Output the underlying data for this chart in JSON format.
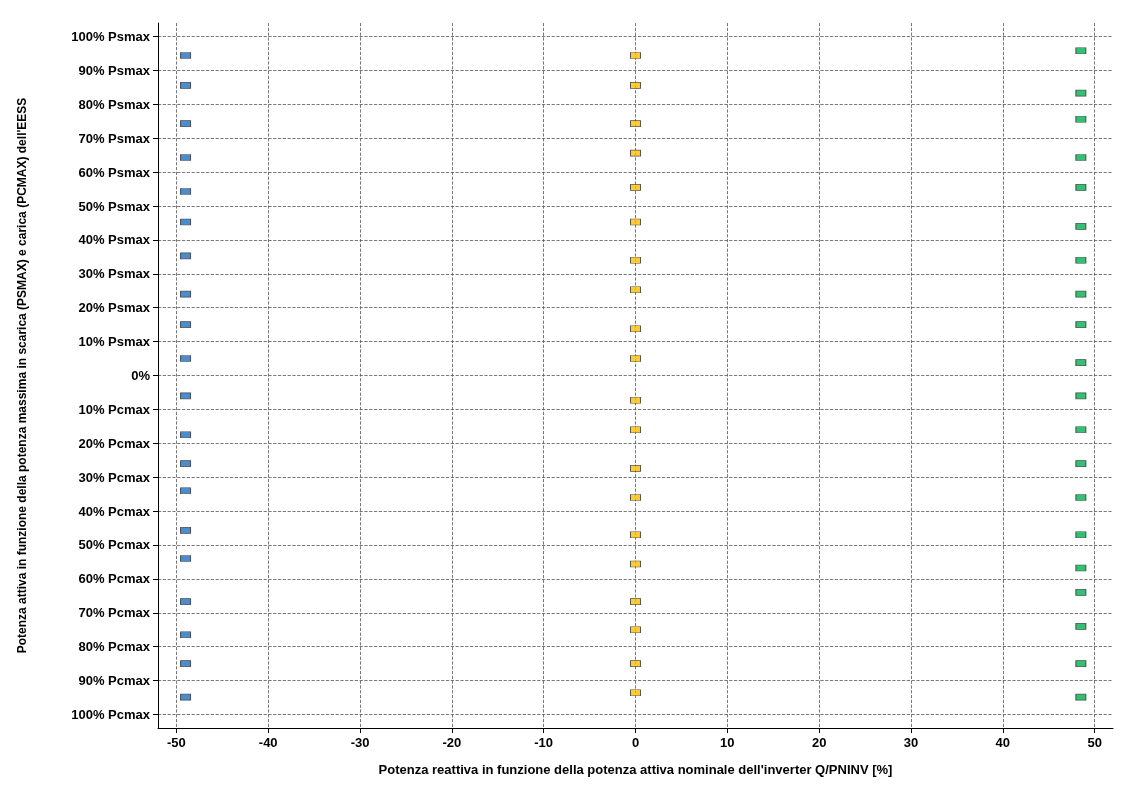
{
  "chart_data": {
    "type": "scatter",
    "xlabel": "Potenza reattiva in funzione della potenza attiva nominale dell'inverter Q/PNINV [%]",
    "ylabel": "Potenza attiva in funzione della potenza massima in scarica (PSMAX) e carica (PCMAX) dell'EESS",
    "xlim": [
      -52,
      52
    ],
    "xticks": [
      -50,
      -40,
      -30,
      -20,
      -10,
      0,
      10,
      20,
      30,
      40,
      50
    ],
    "ylim": [
      -104,
      104
    ],
    "yticks": [
      {
        "value": 100,
        "label": "100% Psmax"
      },
      {
        "value": 90,
        "label": "90% Psmax"
      },
      {
        "value": 80,
        "label": "80% Psmax"
      },
      {
        "value": 70,
        "label": "70% Psmax"
      },
      {
        "value": 60,
        "label": "60% Psmax"
      },
      {
        "value": 50,
        "label": "50% Psmax"
      },
      {
        "value": 40,
        "label": "40% Psmax"
      },
      {
        "value": 30,
        "label": "30% Psmax"
      },
      {
        "value": 20,
        "label": "20% Psmax"
      },
      {
        "value": 10,
        "label": "10% Psmax"
      },
      {
        "value": 0,
        "label": "0%"
      },
      {
        "value": -10,
        "label": "10% Pcmax"
      },
      {
        "value": -20,
        "label": "20% Pcmax"
      },
      {
        "value": -30,
        "label": "30% Pcmax"
      },
      {
        "value": -40,
        "label": "40% Pcmax"
      },
      {
        "value": -50,
        "label": "50% Pcmax"
      },
      {
        "value": -60,
        "label": "60% Pcmax"
      },
      {
        "value": -70,
        "label": "70% Pcmax"
      },
      {
        "value": -80,
        "label": "80% Pcmax"
      },
      {
        "value": -90,
        "label": "90% Pcmax"
      },
      {
        "value": -100,
        "label": "100% Pcmax"
      }
    ],
    "grid": true,
    "marker": "square",
    "series": [
      {
        "color": "#1f6fc0",
        "x": [
          -49,
          -49,
          -49,
          -49,
          -49,
          -49,
          -49,
          -49,
          -49,
          -49,
          -49,
          -49,
          -49,
          -49,
          -49,
          -49,
          -49,
          -49,
          -49,
          -49
        ],
        "values": [
          94.4,
          85.6,
          74.3,
          64.3,
          54.3,
          45.3,
          35.3,
          24,
          15,
          5,
          -6,
          -17.5,
          -26,
          -34,
          -45.7,
          -54,
          -66.7,
          -76.5,
          -85,
          -94.9
        ]
      },
      {
        "color": "#ffc000",
        "x": [
          0,
          0,
          0,
          0,
          0,
          0,
          0,
          0,
          0,
          0,
          0,
          0,
          0,
          0,
          0,
          0,
          0,
          0,
          0,
          0
        ],
        "values": [
          94.4,
          85.6,
          74.3,
          65.6,
          55.5,
          45.3,
          34,
          25.3,
          13.8,
          5,
          -7.3,
          -16,
          -27.4,
          -36,
          -47,
          -55.6,
          -66.7,
          -75,
          -85,
          -93.6
        ]
      },
      {
        "color": "#00b050",
        "x": [
          48.5,
          48.5,
          48.5,
          48.5,
          48.5,
          48.5,
          48.5,
          48.5,
          48.5,
          48.5,
          48.5,
          48.5,
          48.5,
          48.5,
          48.5,
          48.5,
          48.5,
          48.5,
          48.5,
          48.5
        ],
        "values": [
          95.8,
          83.3,
          75.6,
          64.3,
          55.5,
          44,
          34,
          24,
          15,
          3.8,
          -6,
          -16,
          -26,
          -36,
          -47,
          -56.8,
          -64,
          -74,
          -85,
          -94.9
        ]
      }
    ]
  }
}
